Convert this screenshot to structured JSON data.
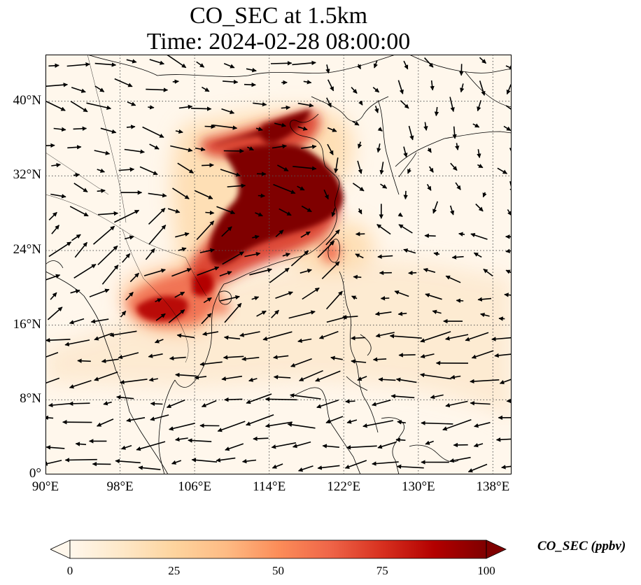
{
  "title": "CO_SEC at 1.5km",
  "subtitle": "Time: 2024-02-28 08:00:00",
  "map": {
    "lon_range": [
      90,
      140
    ],
    "lat_range": [
      0,
      45
    ],
    "lon_ticks": [
      "90°E",
      "98°E",
      "106°E",
      "114°E",
      "122°E",
      "130°E",
      "138°E"
    ],
    "lat_ticks": [
      "0°",
      "8°N",
      "16°N",
      "24°N",
      "32°N",
      "40°N"
    ],
    "lon_tick_values": [
      90,
      98,
      106,
      114,
      122,
      130,
      138
    ],
    "lat_tick_values": [
      0,
      8,
      16,
      24,
      32,
      40
    ],
    "gridlines": true
  },
  "colorbar": {
    "label": "CO_SEC (ppbv)",
    "ticks": [
      "0",
      "25",
      "50",
      "75",
      "100"
    ],
    "tick_values": [
      0,
      25,
      50,
      75,
      100
    ],
    "range": [
      0,
      100
    ],
    "colormap": "OrRd",
    "extend": "both",
    "colors": [
      "#fff7ec",
      "#fee8c8",
      "#fdd49e",
      "#fdbb84",
      "#fc8d59",
      "#ef6548",
      "#d7301f",
      "#b30000",
      "#7f0000"
    ]
  }
}
